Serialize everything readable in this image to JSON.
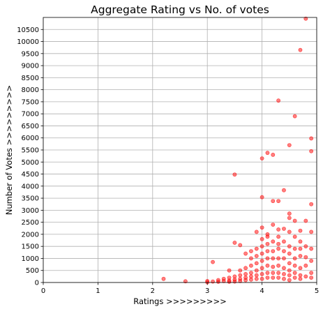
{
  "chart_data": {
    "type": "scatter",
    "title": "Aggregate Rating vs No. of votes",
    "xlabel": "Ratings >>>>>>>>>",
    "ylabel": "Number of Votes >>>>>>>>>",
    "xlim": [
      0,
      5
    ],
    "ylim": [
      0,
      11000
    ],
    "xticks": [
      0,
      1,
      2,
      3,
      4,
      5
    ],
    "yticks": [
      0,
      500,
      1000,
      1500,
      2000,
      2500,
      3000,
      3500,
      4000,
      4500,
      5000,
      5500,
      6000,
      6500,
      7000,
      7500,
      8000,
      8500,
      9000,
      9500,
      10000,
      10500
    ],
    "grid": true,
    "marker_color": "#ff0000",
    "marker_opacity": 0.5,
    "points": [
      [
        4.8,
        10950
      ],
      [
        4.7,
        9650
      ],
      [
        4.3,
        7550
      ],
      [
        4.6,
        6900
      ],
      [
        4.9,
        5980
      ],
      [
        4.5,
        5700
      ],
      [
        4.9,
        5450
      ],
      [
        4.1,
        5380
      ],
      [
        4.2,
        5300
      ],
      [
        4.0,
        5150
      ],
      [
        3.5,
        4480
      ],
      [
        4.4,
        3830
      ],
      [
        4.0,
        3540
      ],
      [
        4.2,
        3380
      ],
      [
        4.3,
        3380
      ],
      [
        4.9,
        3250
      ],
      [
        4.5,
        2860
      ],
      [
        4.5,
        2680
      ],
      [
        4.8,
        2560
      ],
      [
        4.6,
        2560
      ],
      [
        4.2,
        2400
      ],
      [
        4.0,
        2280
      ],
      [
        4.4,
        2230
      ],
      [
        4.3,
        2200
      ],
      [
        4.7,
        2150
      ],
      [
        3.9,
        2100
      ],
      [
        4.1,
        2000
      ],
      [
        3.5,
        1650
      ],
      [
        3.6,
        1550
      ],
      [
        4.3,
        1600
      ],
      [
        3.1,
        850
      ],
      [
        2.2,
        150
      ],
      [
        2.6,
        50
      ],
      [
        3.0,
        10
      ],
      [
        3.0,
        60
      ],
      [
        3.1,
        40
      ],
      [
        3.2,
        100
      ],
      [
        3.2,
        30
      ],
      [
        3.3,
        150
      ],
      [
        3.3,
        60
      ],
      [
        3.4,
        200
      ],
      [
        3.4,
        80
      ],
      [
        3.4,
        30
      ],
      [
        3.4,
        500
      ],
      [
        3.5,
        250
      ],
      [
        3.5,
        120
      ],
      [
        3.5,
        40
      ],
      [
        3.6,
        300
      ],
      [
        3.6,
        150
      ],
      [
        3.6,
        60
      ],
      [
        3.6,
        500
      ],
      [
        3.7,
        350
      ],
      [
        3.7,
        200
      ],
      [
        3.7,
        100
      ],
      [
        3.7,
        600
      ],
      [
        3.7,
        1200
      ],
      [
        3.8,
        400
      ],
      [
        3.8,
        250
      ],
      [
        3.8,
        120
      ],
      [
        3.8,
        700
      ],
      [
        3.8,
        1000
      ],
      [
        3.8,
        1300
      ],
      [
        3.9,
        500
      ],
      [
        3.9,
        300
      ],
      [
        3.9,
        150
      ],
      [
        3.9,
        800
      ],
      [
        3.9,
        1100
      ],
      [
        3.9,
        1400
      ],
      [
        4.0,
        600
      ],
      [
        4.0,
        350
      ],
      [
        4.0,
        150
      ],
      [
        4.0,
        900
      ],
      [
        4.0,
        1200
      ],
      [
        4.0,
        1500
      ],
      [
        4.0,
        1800
      ],
      [
        4.1,
        700
      ],
      [
        4.1,
        400
      ],
      [
        4.1,
        200
      ],
      [
        4.1,
        1000
      ],
      [
        4.1,
        1300
      ],
      [
        4.1,
        1600
      ],
      [
        4.1,
        1900
      ],
      [
        4.2,
        650
      ],
      [
        4.2,
        400
      ],
      [
        4.2,
        200
      ],
      [
        4.2,
        1000
      ],
      [
        4.2,
        1300
      ],
      [
        4.2,
        1700
      ],
      [
        4.3,
        700
      ],
      [
        4.3,
        400
      ],
      [
        4.3,
        200
      ],
      [
        4.3,
        1000
      ],
      [
        4.3,
        1400
      ],
      [
        4.3,
        1900
      ],
      [
        4.4,
        600
      ],
      [
        4.4,
        350
      ],
      [
        4.4,
        150
      ],
      [
        4.4,
        1000
      ],
      [
        4.4,
        1300
      ],
      [
        4.4,
        1700
      ],
      [
        4.5,
        500
      ],
      [
        4.5,
        300
      ],
      [
        4.5,
        100
      ],
      [
        4.5,
        800
      ],
      [
        4.5,
        1200
      ],
      [
        4.5,
        1500
      ],
      [
        4.5,
        2100
      ],
      [
        4.6,
        400
      ],
      [
        4.6,
        200
      ],
      [
        4.6,
        700
      ],
      [
        4.6,
        1000
      ],
      [
        4.6,
        1400
      ],
      [
        4.6,
        1900
      ],
      [
        4.7,
        300
      ],
      [
        4.7,
        150
      ],
      [
        4.7,
        600
      ],
      [
        4.7,
        1100
      ],
      [
        4.7,
        1400
      ],
      [
        4.7,
        1700
      ],
      [
        4.8,
        250
      ],
      [
        4.8,
        700
      ],
      [
        4.8,
        1050
      ],
      [
        4.8,
        1500
      ],
      [
        4.9,
        200
      ],
      [
        4.9,
        400
      ],
      [
        4.9,
        900
      ],
      [
        4.9,
        1400
      ],
      [
        4.9,
        2100
      ]
    ]
  }
}
